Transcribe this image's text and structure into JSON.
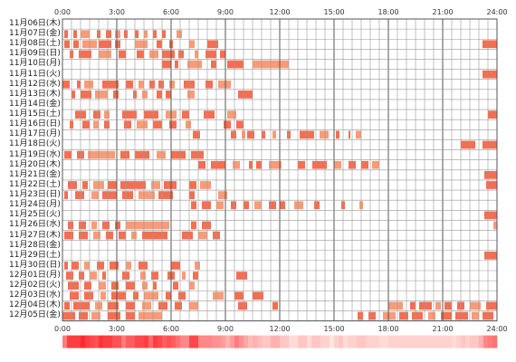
{
  "chart_data": {
    "type": "timeline",
    "title": "",
    "x_ticks": [
      "0:00",
      "3:00",
      "6:00",
      "9:00",
      "12:00",
      "15:00",
      "18:00",
      "21:00",
      "24:00"
    ],
    "x_range": [
      0,
      24
    ],
    "grid": true,
    "colors": {
      "bar": "#f26f52",
      "bar_light": "#f79b78",
      "grid": "#999999",
      "grid_strong": "#555555"
    },
    "days": [
      {
        "label": "11月06日(木)",
        "segments": []
      },
      {
        "label": "11月07日(金)",
        "segments": [
          [
            0.1,
            0.3
          ],
          [
            0.6,
            0.8
          ],
          [
            1.0,
            1.5
          ],
          [
            1.9,
            2.1
          ],
          [
            2.4,
            2.7
          ],
          [
            2.9,
            3.2
          ],
          [
            3.4,
            3.6
          ],
          [
            4.0,
            4.2
          ],
          [
            4.5,
            4.7
          ],
          [
            5.0,
            5.2
          ],
          [
            5.5,
            5.7
          ],
          [
            6.3,
            6.6
          ]
        ]
      },
      {
        "label": "11月08日(土)",
        "segments": [
          [
            0.1,
            0.4
          ],
          [
            0.6,
            0.9
          ],
          [
            1.1,
            1.9
          ],
          [
            2.0,
            2.7
          ],
          [
            2.9,
            3.2
          ],
          [
            4.0,
            4.7
          ],
          [
            5.2,
            5.5
          ],
          [
            5.9,
            6.1
          ],
          [
            7.0,
            7.3
          ],
          [
            8.0,
            8.6
          ],
          [
            23.2,
            24.0
          ]
        ]
      },
      {
        "label": "11月09日(日)",
        "segments": [
          [
            0.4,
            0.6
          ],
          [
            0.9,
            1.6
          ],
          [
            2.0,
            2.7
          ],
          [
            3.1,
            3.5
          ],
          [
            4.1,
            4.5
          ],
          [
            4.8,
            5.3
          ],
          [
            5.5,
            6.2
          ],
          [
            6.4,
            6.7
          ],
          [
            7.3,
            7.5
          ],
          [
            7.9,
            8.5
          ],
          [
            8.7,
            9.0
          ]
        ]
      },
      {
        "label": "11月10日(月)",
        "segments": [
          [
            5.5,
            6.0
          ],
          [
            6.2,
            6.4
          ],
          [
            6.9,
            7.7
          ],
          [
            8.2,
            8.5
          ],
          [
            9.1,
            10.0
          ],
          [
            10.5,
            12.5
          ]
        ]
      },
      {
        "label": "11月11日(火)",
        "segments": [
          [
            23.2,
            24.0
          ]
        ]
      },
      {
        "label": "11月12日(水)",
        "segments": [
          [
            0.0,
            0.4
          ],
          [
            0.8,
            1.0
          ],
          [
            1.2,
            1.7
          ],
          [
            2.2,
            3.1
          ],
          [
            3.5,
            3.9
          ],
          [
            4.2,
            4.5
          ],
          [
            4.8,
            5.1
          ],
          [
            5.3,
            5.6
          ],
          [
            5.9,
            6.2
          ],
          [
            6.7,
            7.3
          ],
          [
            7.9,
            8.3
          ],
          [
            8.6,
            9.3
          ]
        ]
      },
      {
        "label": "11月13日(木)",
        "segments": [
          [
            0.5,
            0.7
          ],
          [
            1.0,
            1.6
          ],
          [
            1.8,
            2.5
          ],
          [
            2.8,
            3.1
          ],
          [
            3.9,
            4.1
          ],
          [
            4.4,
            4.7
          ],
          [
            5.2,
            5.5
          ],
          [
            5.7,
            6.0
          ],
          [
            6.9,
            7.3
          ],
          [
            9.7,
            10.5
          ]
        ]
      },
      {
        "label": "11月14日(金)",
        "segments": []
      },
      {
        "label": "11月15日(土)",
        "segments": [
          [
            0.7,
            1.3
          ],
          [
            1.7,
            2.1
          ],
          [
            2.3,
            2.6
          ],
          [
            3.3,
            4.1
          ],
          [
            4.5,
            5.3
          ],
          [
            5.7,
            6.3
          ],
          [
            6.6,
            7.0
          ],
          [
            7.8,
            8.4
          ],
          [
            9.1,
            9.6
          ],
          [
            23.5,
            24.0
          ]
        ]
      },
      {
        "label": "11月16日(日)",
        "segments": [
          [
            0.4,
            0.6
          ],
          [
            1.1,
            1.5
          ],
          [
            1.7,
            2.0
          ],
          [
            2.3,
            2.6
          ],
          [
            3.4,
            3.8
          ],
          [
            4.1,
            4.7
          ],
          [
            5.0,
            5.5
          ],
          [
            5.9,
            6.3
          ],
          [
            6.8,
            7.1
          ],
          [
            8.9,
            9.3
          ],
          [
            9.6,
            10.0
          ]
        ]
      },
      {
        "label": "11月17日(月)",
        "segments": [
          [
            7.2,
            7.6
          ],
          [
            9.3,
            9.6
          ],
          [
            9.9,
            10.1
          ],
          [
            10.2,
            10.6
          ],
          [
            11.0,
            11.2
          ],
          [
            11.6,
            11.8
          ],
          [
            12.4,
            12.6
          ],
          [
            13.1,
            13.9
          ],
          [
            14.2,
            14.7
          ],
          [
            15.1,
            15.3
          ],
          [
            15.8,
            15.9
          ],
          [
            16.2,
            16.5
          ]
        ]
      },
      {
        "label": "11月18日(火)",
        "segments": [
          [
            22.0,
            22.8
          ],
          [
            23.2,
            24.0
          ]
        ]
      },
      {
        "label": "11月19日(水)",
        "segments": [
          [
            0.1,
            0.5
          ],
          [
            0.8,
            1.2
          ],
          [
            1.4,
            2.9
          ],
          [
            3.2,
            3.7
          ],
          [
            4.0,
            4.8
          ],
          [
            5.2,
            5.7
          ],
          [
            6.0,
            6.8
          ],
          [
            7.1,
            7.8
          ]
        ]
      },
      {
        "label": "11月20日(木)",
        "segments": [
          [
            7.5,
            7.9
          ],
          [
            8.2,
            9.0
          ],
          [
            9.4,
            9.8
          ],
          [
            10.3,
            10.5
          ],
          [
            10.7,
            11.0
          ],
          [
            11.4,
            12.1
          ],
          [
            13.0,
            13.4
          ],
          [
            13.8,
            14.6
          ],
          [
            15.0,
            15.4
          ],
          [
            15.8,
            16.2
          ],
          [
            16.5,
            16.9
          ],
          [
            17.1,
            17.5
          ]
        ]
      },
      {
        "label": "11月21日(金)",
        "segments": [
          [
            23.3,
            24.0
          ]
        ]
      },
      {
        "label": "11月22日(土)",
        "segments": [
          [
            0.3,
            0.8
          ],
          [
            1.1,
            1.4
          ],
          [
            1.7,
            2.3
          ],
          [
            2.5,
            3.0
          ],
          [
            3.2,
            4.6
          ],
          [
            4.9,
            5.4
          ],
          [
            5.6,
            6.3
          ],
          [
            7.0,
            7.4
          ],
          [
            7.6,
            8.2
          ],
          [
            23.4,
            24.0
          ]
        ]
      },
      {
        "label": "11月23日(日)",
        "segments": [
          [
            0.1,
            0.3
          ],
          [
            0.7,
            1.2
          ],
          [
            1.6,
            2.0
          ],
          [
            2.2,
            3.0
          ],
          [
            3.3,
            3.9
          ],
          [
            4.2,
            5.1
          ],
          [
            5.3,
            6.1
          ],
          [
            7.0,
            7.3
          ],
          [
            8.6,
            9.1
          ]
        ]
      },
      {
        "label": "11月24日(月)",
        "segments": [
          [
            7.1,
            7.4
          ],
          [
            7.7,
            8.2
          ],
          [
            8.5,
            8.9
          ],
          [
            9.3,
            9.6
          ],
          [
            10.0,
            10.3
          ],
          [
            10.6,
            11.0
          ],
          [
            11.4,
            11.8
          ],
          [
            12.0,
            12.3
          ],
          [
            12.8,
            13.3
          ],
          [
            13.9,
            14.2
          ],
          [
            15.4,
            15.6
          ],
          [
            16.4,
            16.6
          ]
        ]
      },
      {
        "label": "11月25日(火)",
        "segments": [
          [
            23.3,
            24.0
          ]
        ]
      },
      {
        "label": "11月26日(水)",
        "segments": [
          [
            0.3,
            0.6
          ],
          [
            0.9,
            1.3
          ],
          [
            1.6,
            1.9
          ],
          [
            2.2,
            2.6
          ],
          [
            2.9,
            3.2
          ],
          [
            3.5,
            5.9
          ],
          [
            7.1,
            7.4
          ],
          [
            7.7,
            8.2
          ],
          [
            23.8,
            24.0
          ]
        ]
      },
      {
        "label": "11月27日(木)",
        "segments": [
          [
            0.1,
            0.6
          ],
          [
            0.9,
            1.4
          ],
          [
            1.7,
            2.1
          ],
          [
            2.4,
            2.8
          ],
          [
            3.1,
            3.5
          ],
          [
            3.8,
            4.1
          ],
          [
            4.4,
            5.8
          ],
          [
            6.6,
            7.2
          ],
          [
            7.5,
            8.0
          ],
          [
            8.3,
            8.7
          ]
        ]
      },
      {
        "label": "11月28日(金)",
        "segments": []
      },
      {
        "label": "11月29日(土)",
        "segments": [
          [
            23.3,
            24.0
          ]
        ]
      },
      {
        "label": "11月30日(日)",
        "segments": [
          [
            0.1,
            0.3
          ],
          [
            0.5,
            0.9
          ],
          [
            1.2,
            1.5
          ],
          [
            1.9,
            2.3
          ],
          [
            2.6,
            3.1
          ],
          [
            3.5,
            3.8
          ],
          [
            4.2,
            4.7
          ],
          [
            6.0,
            6.5
          ],
          [
            7.3,
            7.6
          ]
        ]
      },
      {
        "label": "12月01日(月)",
        "segments": [
          [
            0.2,
            0.6
          ],
          [
            0.9,
            1.2
          ],
          [
            1.5,
            1.9
          ],
          [
            2.2,
            2.4
          ],
          [
            3.3,
            3.7
          ],
          [
            4.3,
            4.6
          ],
          [
            4.9,
            5.3
          ],
          [
            5.8,
            6.2
          ],
          [
            6.6,
            6.8
          ],
          [
            7.2,
            7.5
          ],
          [
            9.6,
            10.2
          ]
        ]
      },
      {
        "label": "12月02日(火)",
        "segments": [
          [
            0.3,
            0.9
          ],
          [
            1.2,
            1.6
          ],
          [
            2.0,
            2.4
          ],
          [
            2.7,
            3.1
          ],
          [
            3.5,
            4.0
          ],
          [
            4.4,
            4.7
          ],
          [
            5.0,
            5.2
          ],
          [
            6.1,
            6.4
          ],
          [
            7.0,
            7.3
          ]
        ]
      },
      {
        "label": "12月03日(水)",
        "segments": [
          [
            0.4,
            0.9
          ],
          [
            1.2,
            1.7
          ],
          [
            2.1,
            2.4
          ],
          [
            2.7,
            3.5
          ],
          [
            3.9,
            4.2
          ],
          [
            4.5,
            5.3
          ],
          [
            5.7,
            6.0
          ],
          [
            6.4,
            6.8
          ],
          [
            8.3,
            8.9
          ],
          [
            9.5,
            10.0
          ],
          [
            10.5,
            11.1
          ]
        ]
      },
      {
        "label": "12月04日(木)",
        "segments": [
          [
            0.1,
            0.4
          ],
          [
            0.6,
            1.5
          ],
          [
            1.8,
            2.2
          ],
          [
            2.5,
            3.1
          ],
          [
            3.5,
            4.0
          ],
          [
            4.4,
            4.9
          ],
          [
            5.3,
            5.8
          ],
          [
            6.2,
            6.6
          ],
          [
            7.0,
            7.5
          ],
          [
            9.7,
            10.2
          ],
          [
            11.6,
            11.9
          ],
          [
            18.0,
            18.8
          ],
          [
            19.2,
            19.5
          ],
          [
            19.7,
            20.4
          ],
          [
            20.6,
            20.9
          ],
          [
            21.1,
            21.5
          ],
          [
            21.8,
            22.2
          ],
          [
            22.5,
            23.1
          ],
          [
            23.4,
            24.0
          ]
        ]
      },
      {
        "label": "12月05日(金)",
        "segments": [
          [
            0.0,
            0.7
          ],
          [
            0.9,
            1.4
          ],
          [
            1.6,
            2.1
          ],
          [
            2.5,
            3.2
          ],
          [
            3.5,
            4.0
          ],
          [
            4.2,
            5.5
          ],
          [
            16.3,
            16.6
          ],
          [
            16.9,
            17.3
          ],
          [
            17.7,
            18.4
          ],
          [
            18.6,
            19.1
          ],
          [
            19.3,
            19.9
          ],
          [
            20.2,
            20.6
          ],
          [
            20.9,
            21.5
          ],
          [
            21.7,
            22.4
          ],
          [
            22.6,
            23.0
          ],
          [
            23.2,
            23.8
          ]
        ]
      }
    ]
  }
}
